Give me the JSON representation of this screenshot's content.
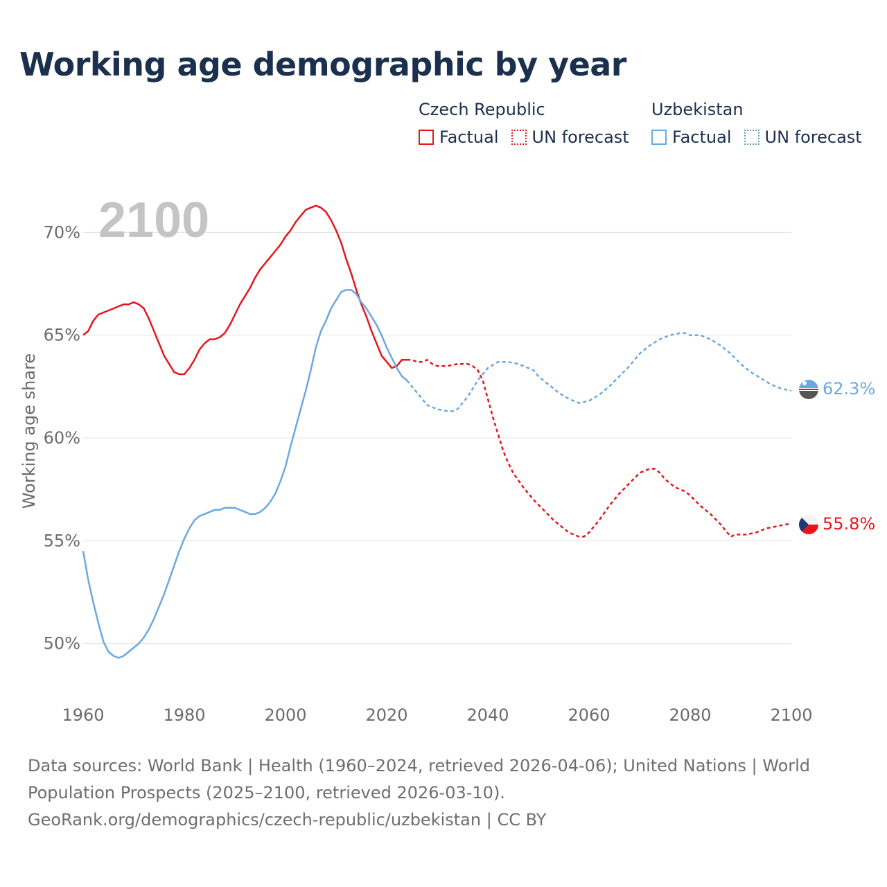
{
  "title": "Working age demographic by year",
  "year_label": "2100",
  "legend": {
    "groups": [
      {
        "name": "Czech Republic",
        "color": "#e8141b",
        "factual": "Factual",
        "forecast": "UN forecast"
      },
      {
        "name": "Uzbekistan",
        "color": "#6aa8e0",
        "factual": "Factual",
        "forecast": "UN forecast"
      }
    ]
  },
  "footer": {
    "sources": "Data sources: World Bank | Health (1960–2024, retrieved 2026-04-06); United Nations | World Population Prospects (2025–2100, retrieved 2026-03-10).",
    "credit": "GeoRank.org/demographics/czech-republic/uzbekistan | CC BY"
  },
  "chart_data": {
    "type": "line",
    "title": "Working age demographic by year",
    "ylabel": "Working age share",
    "xlabel": "",
    "xlim": [
      1960,
      2100
    ],
    "ylim": [
      48,
      72
    ],
    "xticks": [
      1960,
      1980,
      2000,
      2020,
      2040,
      2060,
      2080,
      2100
    ],
    "xtick_labels": [
      "1960",
      "1980",
      "2000",
      "2020",
      "2040",
      "2060",
      "2080",
      "2100"
    ],
    "yticks": [
      50,
      55,
      60,
      65,
      70
    ],
    "ytick_labels": [
      "50%",
      "55%",
      "60%",
      "65%",
      "70%"
    ],
    "grid": true,
    "factual_range": [
      1960,
      2024
    ],
    "forecast_range": [
      2024,
      2100
    ],
    "series": [
      {
        "name": "Czech Republic",
        "color": "#e8141b",
        "end_label": "55.8%",
        "flag": "czech-republic-flag-icon",
        "points": [
          [
            1960,
            65.0
          ],
          [
            1961,
            65.2
          ],
          [
            1962,
            65.7
          ],
          [
            1963,
            66.0
          ],
          [
            1964,
            66.1
          ],
          [
            1965,
            66.2
          ],
          [
            1966,
            66.3
          ],
          [
            1967,
            66.4
          ],
          [
            1968,
            66.5
          ],
          [
            1969,
            66.5
          ],
          [
            1970,
            66.6
          ],
          [
            1971,
            66.5
          ],
          [
            1972,
            66.3
          ],
          [
            1973,
            65.8
          ],
          [
            1974,
            65.2
          ],
          [
            1975,
            64.6
          ],
          [
            1976,
            64.0
          ],
          [
            1977,
            63.6
          ],
          [
            1978,
            63.2
          ],
          [
            1979,
            63.1
          ],
          [
            1980,
            63.1
          ],
          [
            1981,
            63.4
          ],
          [
            1982,
            63.8
          ],
          [
            1983,
            64.3
          ],
          [
            1984,
            64.6
          ],
          [
            1985,
            64.8
          ],
          [
            1986,
            64.8
          ],
          [
            1987,
            64.9
          ],
          [
            1988,
            65.1
          ],
          [
            1989,
            65.5
          ],
          [
            1990,
            66.0
          ],
          [
            1991,
            66.5
          ],
          [
            1992,
            66.9
          ],
          [
            1993,
            67.3
          ],
          [
            1994,
            67.8
          ],
          [
            1995,
            68.2
          ],
          [
            1996,
            68.5
          ],
          [
            1997,
            68.8
          ],
          [
            1998,
            69.1
          ],
          [
            1999,
            69.4
          ],
          [
            2000,
            69.8
          ],
          [
            2001,
            70.1
          ],
          [
            2002,
            70.5
          ],
          [
            2003,
            70.8
          ],
          [
            2004,
            71.1
          ],
          [
            2005,
            71.2
          ],
          [
            2006,
            71.3
          ],
          [
            2007,
            71.2
          ],
          [
            2008,
            71.0
          ],
          [
            2009,
            70.6
          ],
          [
            2010,
            70.1
          ],
          [
            2011,
            69.5
          ],
          [
            2012,
            68.7
          ],
          [
            2013,
            68.0
          ],
          [
            2014,
            67.2
          ],
          [
            2015,
            66.5
          ],
          [
            2016,
            65.9
          ],
          [
            2017,
            65.2
          ],
          [
            2018,
            64.6
          ],
          [
            2019,
            64.0
          ],
          [
            2020,
            63.7
          ],
          [
            2021,
            63.4
          ],
          [
            2022,
            63.5
          ],
          [
            2023,
            63.8
          ],
          [
            2024,
            63.8
          ],
          [
            2025,
            63.8
          ],
          [
            2026,
            63.7
          ],
          [
            2027,
            63.7
          ],
          [
            2028,
            63.8
          ],
          [
            2029,
            63.6
          ],
          [
            2030,
            63.5
          ],
          [
            2032,
            63.5
          ],
          [
            2034,
            63.6
          ],
          [
            2036,
            63.6
          ],
          [
            2037,
            63.5
          ],
          [
            2038,
            63.3
          ],
          [
            2039,
            62.8
          ],
          [
            2040,
            61.9
          ],
          [
            2041,
            61.0
          ],
          [
            2042,
            60.2
          ],
          [
            2043,
            59.4
          ],
          [
            2044,
            58.8
          ],
          [
            2045,
            58.3
          ],
          [
            2047,
            57.6
          ],
          [
            2049,
            57.0
          ],
          [
            2051,
            56.5
          ],
          [
            2053,
            56.0
          ],
          [
            2055,
            55.6
          ],
          [
            2056,
            55.4
          ],
          [
            2057,
            55.3
          ],
          [
            2058,
            55.2
          ],
          [
            2059,
            55.2
          ],
          [
            2060,
            55.4
          ],
          [
            2061,
            55.7
          ],
          [
            2062,
            56.0
          ],
          [
            2064,
            56.7
          ],
          [
            2066,
            57.3
          ],
          [
            2068,
            57.8
          ],
          [
            2070,
            58.3
          ],
          [
            2072,
            58.5
          ],
          [
            2073,
            58.5
          ],
          [
            2074,
            58.3
          ],
          [
            2075,
            58.0
          ],
          [
            2076,
            57.8
          ],
          [
            2077,
            57.6
          ],
          [
            2079,
            57.4
          ],
          [
            2080,
            57.2
          ],
          [
            2082,
            56.7
          ],
          [
            2084,
            56.3
          ],
          [
            2086,
            55.8
          ],
          [
            2087,
            55.5
          ],
          [
            2088,
            55.2
          ],
          [
            2089,
            55.3
          ],
          [
            2091,
            55.3
          ],
          [
            2093,
            55.4
          ],
          [
            2095,
            55.6
          ],
          [
            2097,
            55.7
          ],
          [
            2099,
            55.8
          ],
          [
            2100,
            55.8
          ]
        ]
      },
      {
        "name": "Uzbekistan",
        "color": "#6aa8e0",
        "end_label": "62.3%",
        "flag": "uzbekistan-flag-icon",
        "points": [
          [
            1960,
            54.5
          ],
          [
            1961,
            53.1
          ],
          [
            1962,
            52.0
          ],
          [
            1963,
            51.0
          ],
          [
            1964,
            50.1
          ],
          [
            1965,
            49.6
          ],
          [
            1966,
            49.4
          ],
          [
            1967,
            49.3
          ],
          [
            1968,
            49.4
          ],
          [
            1969,
            49.6
          ],
          [
            1970,
            49.8
          ],
          [
            1971,
            50.0
          ],
          [
            1972,
            50.3
          ],
          [
            1973,
            50.7
          ],
          [
            1974,
            51.2
          ],
          [
            1975,
            51.8
          ],
          [
            1976,
            52.4
          ],
          [
            1977,
            53.1
          ],
          [
            1978,
            53.8
          ],
          [
            1979,
            54.5
          ],
          [
            1980,
            55.1
          ],
          [
            1981,
            55.6
          ],
          [
            1982,
            56.0
          ],
          [
            1983,
            56.2
          ],
          [
            1984,
            56.3
          ],
          [
            1985,
            56.4
          ],
          [
            1986,
            56.5
          ],
          [
            1987,
            56.5
          ],
          [
            1988,
            56.6
          ],
          [
            1989,
            56.6
          ],
          [
            1990,
            56.6
          ],
          [
            1991,
            56.5
          ],
          [
            1992,
            56.4
          ],
          [
            1993,
            56.3
          ],
          [
            1994,
            56.3
          ],
          [
            1995,
            56.4
          ],
          [
            1996,
            56.6
          ],
          [
            1997,
            56.9
          ],
          [
            1998,
            57.3
          ],
          [
            1999,
            57.9
          ],
          [
            2000,
            58.6
          ],
          [
            2001,
            59.6
          ],
          [
            2002,
            60.5
          ],
          [
            2003,
            61.4
          ],
          [
            2004,
            62.3
          ],
          [
            2005,
            63.3
          ],
          [
            2006,
            64.4
          ],
          [
            2007,
            65.2
          ],
          [
            2008,
            65.7
          ],
          [
            2009,
            66.3
          ],
          [
            2010,
            66.7
          ],
          [
            2011,
            67.1
          ],
          [
            2012,
            67.2
          ],
          [
            2013,
            67.2
          ],
          [
            2014,
            67.0
          ],
          [
            2015,
            66.6
          ],
          [
            2016,
            66.3
          ],
          [
            2017,
            65.9
          ],
          [
            2018,
            65.5
          ],
          [
            2019,
            65.0
          ],
          [
            2020,
            64.4
          ],
          [
            2021,
            63.9
          ],
          [
            2022,
            63.4
          ],
          [
            2023,
            63.0
          ],
          [
            2024,
            62.8
          ],
          [
            2025,
            62.5
          ],
          [
            2026,
            62.2
          ],
          [
            2027,
            61.9
          ],
          [
            2028,
            61.6
          ],
          [
            2029,
            61.5
          ],
          [
            2030,
            61.4
          ],
          [
            2032,
            61.3
          ],
          [
            2033,
            61.3
          ],
          [
            2034,
            61.4
          ],
          [
            2035,
            61.7
          ],
          [
            2036,
            62.0
          ],
          [
            2037,
            62.4
          ],
          [
            2038,
            62.8
          ],
          [
            2039,
            63.1
          ],
          [
            2040,
            63.4
          ],
          [
            2042,
            63.7
          ],
          [
            2044,
            63.7
          ],
          [
            2046,
            63.6
          ],
          [
            2048,
            63.4
          ],
          [
            2049,
            63.3
          ],
          [
            2050,
            63.0
          ],
          [
            2052,
            62.6
          ],
          [
            2054,
            62.2
          ],
          [
            2056,
            61.9
          ],
          [
            2058,
            61.7
          ],
          [
            2060,
            61.8
          ],
          [
            2062,
            62.1
          ],
          [
            2064,
            62.5
          ],
          [
            2066,
            63.0
          ],
          [
            2068,
            63.5
          ],
          [
            2070,
            64.1
          ],
          [
            2072,
            64.5
          ],
          [
            2074,
            64.8
          ],
          [
            2076,
            65.0
          ],
          [
            2078,
            65.1
          ],
          [
            2079,
            65.1
          ],
          [
            2080,
            65.0
          ],
          [
            2082,
            65.0
          ],
          [
            2084,
            64.8
          ],
          [
            2086,
            64.5
          ],
          [
            2088,
            64.1
          ],
          [
            2090,
            63.6
          ],
          [
            2092,
            63.2
          ],
          [
            2094,
            62.9
          ],
          [
            2096,
            62.6
          ],
          [
            2098,
            62.4
          ],
          [
            2100,
            62.3
          ]
        ]
      }
    ]
  }
}
